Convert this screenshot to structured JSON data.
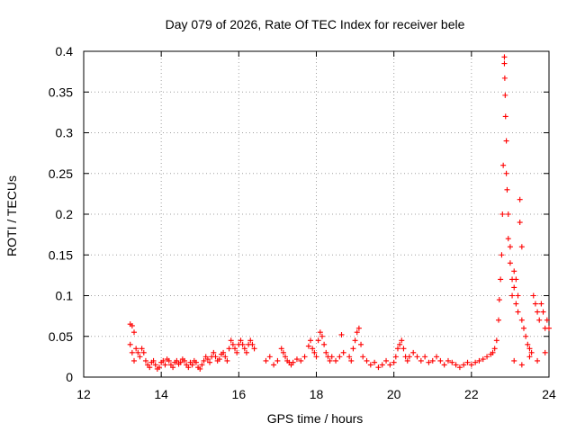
{
  "chart_data": {
    "type": "scatter",
    "title": "Day 079 of 2026, Rate Of TEC Index for receiver bele",
    "xlabel": "GPS time / hours",
    "ylabel": "ROTI / TECUs",
    "xlim": [
      12,
      24
    ],
    "ylim": [
      0,
      0.4
    ],
    "x_ticks": [
      12,
      14,
      16,
      18,
      20,
      22,
      24
    ],
    "y_ticks": [
      0,
      0.05,
      0.1,
      0.15,
      0.2,
      0.25,
      0.3,
      0.35,
      0.4
    ],
    "x_tick_labels": [
      "12",
      "14",
      "16",
      "18",
      "20",
      "22",
      "24"
    ],
    "y_tick_labels": [
      "0",
      "0.05",
      "0.1",
      "0.15",
      "0.2",
      "0.25",
      "0.3",
      "0.35",
      "0.4"
    ],
    "grid": true,
    "marker": "+",
    "color": "#ff0000",
    "series": [
      {
        "points": [
          [
            13.2,
            0.065
          ],
          [
            13.25,
            0.063
          ],
          [
            13.3,
            0.055
          ],
          [
            13.2,
            0.04
          ],
          [
            13.25,
            0.03
          ],
          [
            13.3,
            0.02
          ],
          [
            13.35,
            0.035
          ],
          [
            13.4,
            0.03
          ],
          [
            13.45,
            0.025
          ],
          [
            13.5,
            0.035
          ],
          [
            13.55,
            0.03
          ],
          [
            13.6,
            0.02
          ],
          [
            13.65,
            0.015
          ],
          [
            13.7,
            0.012
          ],
          [
            13.75,
            0.018
          ],
          [
            13.8,
            0.02
          ],
          [
            13.85,
            0.015
          ],
          [
            13.9,
            0.01
          ],
          [
            13.95,
            0.012
          ],
          [
            14.0,
            0.018
          ],
          [
            14.05,
            0.02
          ],
          [
            14.1,
            0.015
          ],
          [
            14.15,
            0.022
          ],
          [
            14.2,
            0.02
          ],
          [
            14.25,
            0.015
          ],
          [
            14.3,
            0.012
          ],
          [
            14.35,
            0.018
          ],
          [
            14.4,
            0.02
          ],
          [
            14.45,
            0.016
          ],
          [
            14.5,
            0.018
          ],
          [
            14.55,
            0.022
          ],
          [
            14.6,
            0.02
          ],
          [
            14.65,
            0.015
          ],
          [
            14.7,
            0.012
          ],
          [
            14.75,
            0.018
          ],
          [
            14.8,
            0.015
          ],
          [
            14.85,
            0.02
          ],
          [
            14.9,
            0.018
          ],
          [
            14.95,
            0.012
          ],
          [
            15.0,
            0.01
          ],
          [
            15.05,
            0.015
          ],
          [
            15.1,
            0.02
          ],
          [
            15.15,
            0.025
          ],
          [
            15.2,
            0.022
          ],
          [
            15.25,
            0.018
          ],
          [
            15.3,
            0.025
          ],
          [
            15.35,
            0.03
          ],
          [
            15.4,
            0.025
          ],
          [
            15.45,
            0.02
          ],
          [
            15.5,
            0.022
          ],
          [
            15.55,
            0.028
          ],
          [
            15.6,
            0.03
          ],
          [
            15.65,
            0.025
          ],
          [
            15.7,
            0.02
          ],
          [
            15.75,
            0.035
          ],
          [
            15.8,
            0.045
          ],
          [
            15.85,
            0.04
          ],
          [
            15.9,
            0.035
          ],
          [
            15.95,
            0.03
          ],
          [
            16.0,
            0.04
          ],
          [
            16.05,
            0.045
          ],
          [
            16.1,
            0.04
          ],
          [
            16.15,
            0.035
          ],
          [
            16.2,
            0.03
          ],
          [
            16.25,
            0.04
          ],
          [
            16.3,
            0.045
          ],
          [
            16.35,
            0.04
          ],
          [
            16.4,
            0.035
          ],
          [
            16.7,
            0.02
          ],
          [
            16.8,
            0.025
          ],
          [
            16.9,
            0.015
          ],
          [
            17.0,
            0.02
          ],
          [
            17.1,
            0.035
          ],
          [
            17.15,
            0.03
          ],
          [
            17.2,
            0.025
          ],
          [
            17.25,
            0.02
          ],
          [
            17.3,
            0.018
          ],
          [
            17.35,
            0.015
          ],
          [
            17.4,
            0.018
          ],
          [
            17.5,
            0.022
          ],
          [
            17.6,
            0.02
          ],
          [
            17.7,
            0.025
          ],
          [
            17.8,
            0.038
          ],
          [
            17.85,
            0.045
          ],
          [
            17.9,
            0.035
          ],
          [
            17.95,
            0.03
          ],
          [
            18.0,
            0.025
          ],
          [
            18.05,
            0.045
          ],
          [
            18.1,
            0.055
          ],
          [
            18.15,
            0.05
          ],
          [
            18.2,
            0.04
          ],
          [
            18.25,
            0.03
          ],
          [
            18.3,
            0.025
          ],
          [
            18.35,
            0.02
          ],
          [
            18.4,
            0.025
          ],
          [
            18.5,
            0.02
          ],
          [
            18.6,
            0.025
          ],
          [
            18.65,
            0.052
          ],
          [
            18.7,
            0.03
          ],
          [
            18.85,
            0.025
          ],
          [
            18.9,
            0.02
          ],
          [
            18.95,
            0.035
          ],
          [
            19.0,
            0.045
          ],
          [
            19.05,
            0.055
          ],
          [
            19.1,
            0.06
          ],
          [
            19.15,
            0.04
          ],
          [
            19.2,
            0.025
          ],
          [
            19.3,
            0.02
          ],
          [
            19.4,
            0.015
          ],
          [
            19.5,
            0.018
          ],
          [
            19.6,
            0.012
          ],
          [
            19.7,
            0.015
          ],
          [
            19.8,
            0.02
          ],
          [
            19.9,
            0.015
          ],
          [
            20.0,
            0.018
          ],
          [
            20.05,
            0.025
          ],
          [
            20.1,
            0.035
          ],
          [
            20.15,
            0.04
          ],
          [
            20.2,
            0.045
          ],
          [
            20.25,
            0.035
          ],
          [
            20.3,
            0.025
          ],
          [
            20.35,
            0.02
          ],
          [
            20.4,
            0.025
          ],
          [
            20.5,
            0.03
          ],
          [
            20.6,
            0.025
          ],
          [
            20.7,
            0.02
          ],
          [
            20.8,
            0.025
          ],
          [
            20.9,
            0.018
          ],
          [
            21.0,
            0.02
          ],
          [
            21.1,
            0.025
          ],
          [
            21.2,
            0.02
          ],
          [
            21.3,
            0.015
          ],
          [
            21.4,
            0.02
          ],
          [
            21.5,
            0.018
          ],
          [
            21.6,
            0.015
          ],
          [
            21.7,
            0.012
          ],
          [
            21.8,
            0.015
          ],
          [
            21.9,
            0.018
          ],
          [
            22.0,
            0.015
          ],
          [
            22.1,
            0.018
          ],
          [
            22.2,
            0.02
          ],
          [
            22.3,
            0.022
          ],
          [
            22.4,
            0.025
          ],
          [
            22.5,
            0.028
          ],
          [
            22.55,
            0.03
          ],
          [
            22.6,
            0.035
          ],
          [
            22.65,
            0.045
          ],
          [
            22.7,
            0.07
          ],
          [
            22.72,
            0.095
          ],
          [
            22.75,
            0.12
          ],
          [
            22.78,
            0.15
          ],
          [
            22.8,
            0.2
          ],
          [
            22.82,
            0.26
          ],
          [
            22.85,
            0.393
          ],
          [
            22.85,
            0.385
          ],
          [
            22.86,
            0.367
          ],
          [
            22.87,
            0.346
          ],
          [
            22.88,
            0.32
          ],
          [
            22.9,
            0.29
          ],
          [
            22.9,
            0.25
          ],
          [
            22.92,
            0.23
          ],
          [
            22.95,
            0.2
          ],
          [
            22.95,
            0.17
          ],
          [
            23.0,
            0.16
          ],
          [
            23.0,
            0.14
          ],
          [
            23.05,
            0.12
          ],
          [
            23.05,
            0.1
          ],
          [
            23.1,
            0.13
          ],
          [
            23.1,
            0.11
          ],
          [
            23.15,
            0.09
          ],
          [
            23.15,
            0.12
          ],
          [
            23.2,
            0.1
          ],
          [
            23.2,
            0.08
          ],
          [
            23.25,
            0.218
          ],
          [
            23.25,
            0.19
          ],
          [
            23.3,
            0.16
          ],
          [
            23.3,
            0.07
          ],
          [
            23.35,
            0.06
          ],
          [
            23.4,
            0.05
          ],
          [
            23.45,
            0.04
          ],
          [
            23.5,
            0.035
          ],
          [
            23.55,
            0.03
          ],
          [
            23.6,
            0.1
          ],
          [
            23.65,
            0.09
          ],
          [
            23.7,
            0.08
          ],
          [
            23.75,
            0.07
          ],
          [
            23.8,
            0.09
          ],
          [
            23.85,
            0.08
          ],
          [
            23.9,
            0.06
          ],
          [
            23.95,
            0.07
          ],
          [
            24.0,
            0.06
          ],
          [
            23.1,
            0.02
          ],
          [
            23.3,
            0.015
          ],
          [
            23.5,
            0.025
          ],
          [
            23.7,
            0.02
          ],
          [
            23.9,
            0.03
          ]
        ]
      }
    ]
  }
}
